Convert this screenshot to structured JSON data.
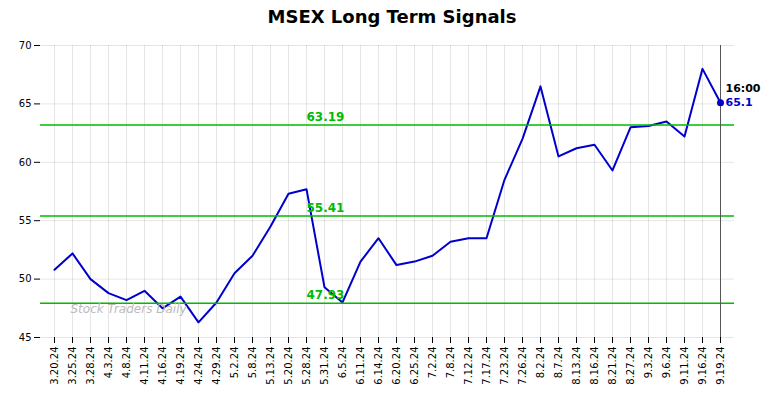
{
  "chart_data": {
    "type": "line",
    "title": "MSEX Long Term Signals",
    "categories": [
      "3.20.24",
      "3.25.24",
      "3.28.24",
      "4.3.24",
      "4.8.24",
      "4.11.24",
      "4.16.24",
      "4.19.24",
      "4.24.24",
      "4.29.24",
      "5.2.24",
      "5.8.24",
      "5.13.24",
      "5.20.24",
      "5.28.24",
      "5.31.24",
      "6.5.24",
      "6.11.24",
      "6.14.24",
      "6.20.24",
      "6.25.24",
      "7.2.24",
      "7.8.24",
      "7.12.24",
      "7.17.24",
      "7.23.24",
      "7.26.24",
      "8.2.24",
      "8.7.24",
      "8.13.24",
      "8.16.24",
      "8.21.24",
      "8.27.24",
      "9.3.24",
      "9.6.24",
      "9.11.24",
      "9.16.24",
      "9.19.24"
    ],
    "values": [
      50.8,
      52.2,
      50.0,
      48.8,
      48.2,
      49.0,
      47.5,
      48.5,
      46.3,
      48.0,
      50.5,
      52.0,
      54.5,
      57.3,
      57.7,
      49.3,
      48.0,
      51.5,
      53.5,
      51.2,
      51.5,
      52.0,
      53.2,
      53.5,
      53.5,
      58.5,
      62.0,
      66.5,
      60.5,
      61.2,
      61.5,
      59.3,
      63.0,
      63.1,
      63.5,
      62.2,
      68.0,
      65.1
    ],
    "color": "#0000cc",
    "ylim": [
      45,
      70
    ],
    "yticks": [
      45,
      50,
      55,
      60,
      65,
      70
    ],
    "grid": true,
    "reference_lines": [
      {
        "value": 47.93,
        "label": "47.93",
        "color": "#00bb00"
      },
      {
        "value": 55.41,
        "label": "55.41",
        "color": "#00bb00"
      },
      {
        "value": 63.19,
        "label": "63.19",
        "color": "#00bb00"
      }
    ],
    "highlight_point": {
      "x": "9.19.24",
      "y": 65.1,
      "color": "#0000cc"
    },
    "vline": {
      "x": "9.19.24",
      "color": "#555555"
    },
    "annotations": [
      {
        "text": "16:00",
        "x": "9.19.24",
        "y": 65.1,
        "color": "#000000"
      },
      {
        "text": "65.1",
        "x": "9.19.24",
        "y": 65.1,
        "color": "#0000cc"
      }
    ],
    "watermark": "Stock Traders Daily"
  }
}
